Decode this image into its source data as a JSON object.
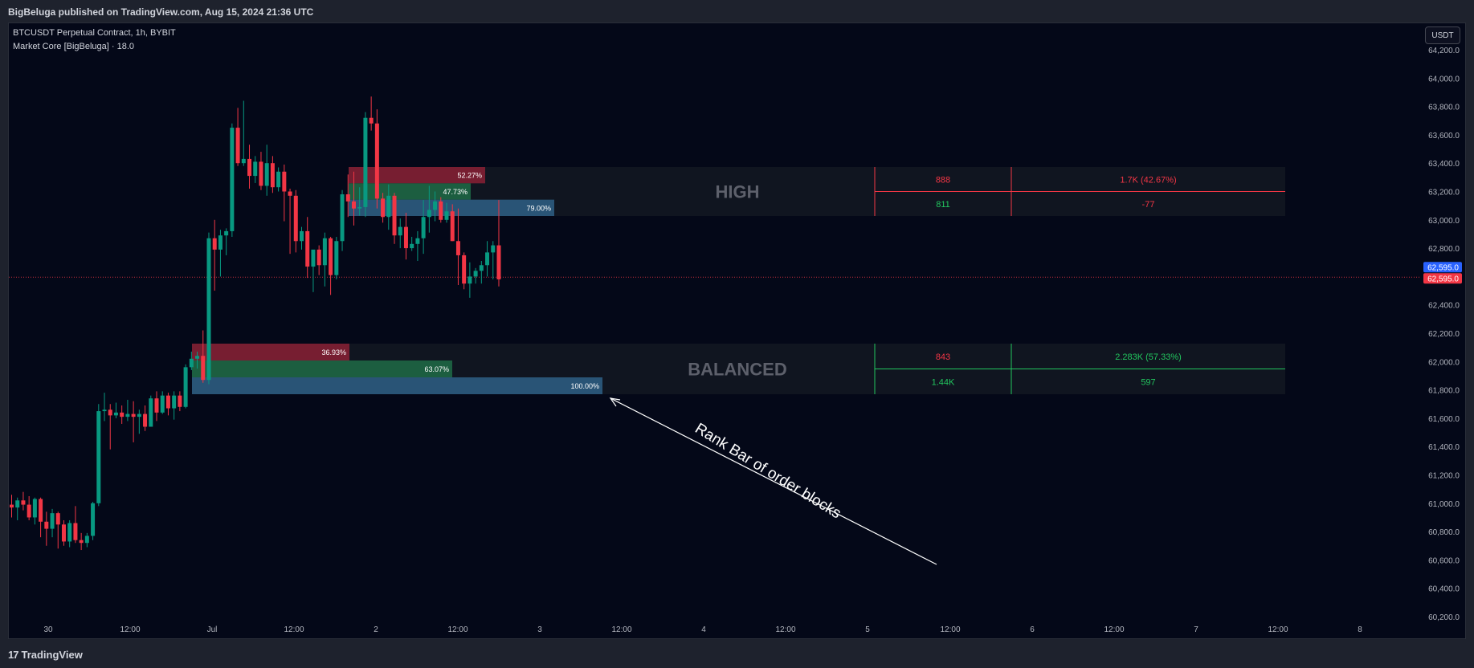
{
  "header": {
    "published": "BigBeluga published on TradingView.com, Aug 15, 2024 21:36 UTC"
  },
  "chart_info": {
    "symbol_line": "BTCUSDT Perpetual Contract, 1h, BYBIT",
    "indicator_line": "Market Core [BigBeluga] · 18.0"
  },
  "currency_button": "USDT",
  "footer": {
    "brand": "TradingView",
    "brand_mark": "17"
  },
  "colors": {
    "up": "#089981",
    "down": "#f23645",
    "background": "#040818",
    "rank_blue": "#2e5f86",
    "rank_green": "#1e6b47",
    "rank_red": "#8a2035"
  },
  "price_axis": {
    "ticks": [
      "64,200.0",
      "64,000.0",
      "63,800.0",
      "63,600.0",
      "63,400.0",
      "63,200.0",
      "63,000.0",
      "62,800.0",
      "62,600.0",
      "62,400.0",
      "62,200.0",
      "62,000.0",
      "61,800.0",
      "61,600.0",
      "61,400.0",
      "61,200.0",
      "61,000.0",
      "60,800.0",
      "60,600.0",
      "60,400.0",
      "60,200.0"
    ],
    "current_price_blue": "62,595.0",
    "current_price_red": "62,595.0"
  },
  "time_axis": {
    "ticks": [
      "30",
      "12:00",
      "Jul",
      "12:00",
      "2",
      "12:00",
      "3",
      "12:00",
      "4",
      "12:00",
      "5",
      "12:00",
      "6",
      "12:00",
      "7",
      "12:00",
      "8"
    ]
  },
  "order_blocks": {
    "high": {
      "label": "HIGH",
      "bars": [
        "52.27%",
        "47.73%",
        "79.00%"
      ],
      "table": {
        "row1_left": "888",
        "row1_right": "1.7K (42.67%)",
        "row2_left": "811",
        "row2_right": "-77"
      }
    },
    "balanced": {
      "label": "BALANCED",
      "bars": [
        "36.93%",
        "63.07%",
        "100.00%"
      ],
      "table": {
        "row1_left": "843",
        "row1_right": "2.283K (57.33%)",
        "row2_left": "1.44K",
        "row2_right": "597"
      }
    }
  },
  "annotation": {
    "text": "Rank Bar of order blocks"
  },
  "chart_data": {
    "type": "candlestick",
    "timeframe": "1h",
    "ylim": [
      60150,
      64250
    ],
    "candles": [
      [
        60990,
        61060,
        60900,
        60970
      ],
      [
        60970,
        61040,
        60880,
        61020
      ],
      [
        61020,
        61080,
        60950,
        60990
      ],
      [
        60990,
        61050,
        60880,
        60900
      ],
      [
        60900,
        61040,
        60850,
        61030
      ],
      [
        61030,
        61040,
        60760,
        60870
      ],
      [
        60870,
        60940,
        60700,
        60820
      ],
      [
        60820,
        60960,
        60760,
        60930
      ],
      [
        60930,
        60940,
        60680,
        60850
      ],
      [
        60850,
        60880,
        60700,
        60730
      ],
      [
        60730,
        60880,
        60690,
        60860
      ],
      [
        60860,
        60980,
        60720,
        60740
      ],
      [
        60740,
        60790,
        60670,
        60720
      ],
      [
        60720,
        60790,
        60690,
        60770
      ],
      [
        60770,
        61010,
        60740,
        61000
      ],
      [
        61000,
        61700,
        60980,
        61650
      ],
      [
        61650,
        61780,
        61580,
        61660
      ],
      [
        61660,
        61700,
        61380,
        61620
      ],
      [
        61620,
        61710,
        61600,
        61640
      ],
      [
        61640,
        61690,
        61560,
        61610
      ],
      [
        61610,
        61730,
        61580,
        61630
      ],
      [
        61630,
        61720,
        61430,
        61610
      ],
      [
        61610,
        61660,
        61490,
        61630
      ],
      [
        61630,
        61690,
        61510,
        61540
      ],
      [
        61540,
        61760,
        61540,
        61740
      ],
      [
        61740,
        61790,
        61580,
        61640
      ],
      [
        61640,
        61790,
        61630,
        61760
      ],
      [
        61760,
        61780,
        61620,
        61670
      ],
      [
        61670,
        61790,
        61590,
        61760
      ],
      [
        61760,
        61790,
        61650,
        61680
      ],
      [
        61680,
        61980,
        61670,
        61960
      ],
      [
        61960,
        62070,
        61940,
        62020
      ],
      [
        62020,
        62070,
        61950,
        62040
      ],
      [
        62040,
        62220,
        61850,
        61870
      ],
      [
        61870,
        62910,
        61840,
        62870
      ],
      [
        62870,
        63000,
        62500,
        62790
      ],
      [
        62790,
        62930,
        62600,
        62890
      ],
      [
        62890,
        62940,
        62750,
        62920
      ],
      [
        62920,
        63680,
        62880,
        63650
      ],
      [
        63650,
        63790,
        63380,
        63400
      ],
      [
        63400,
        63840,
        63380,
        63430
      ],
      [
        63430,
        63530,
        63220,
        63310
      ],
      [
        63310,
        63450,
        63260,
        63410
      ],
      [
        63410,
        63480,
        63210,
        63240
      ],
      [
        63240,
        63530,
        63170,
        63400
      ],
      [
        63400,
        63450,
        63190,
        63230
      ],
      [
        63230,
        63370,
        63200,
        63340
      ],
      [
        63340,
        63390,
        62990,
        63200
      ],
      [
        63200,
        63220,
        62760,
        63170
      ],
      [
        63170,
        63210,
        62770,
        62850
      ],
      [
        62850,
        62950,
        62790,
        62920
      ],
      [
        62920,
        63020,
        62590,
        62670
      ],
      [
        62670,
        62780,
        62490,
        62790
      ],
      [
        62790,
        62820,
        62610,
        62680
      ],
      [
        62680,
        62910,
        62530,
        62870
      ],
      [
        62870,
        62880,
        62470,
        62610
      ],
      [
        62610,
        62880,
        62580,
        62850
      ],
      [
        62850,
        63210,
        62780,
        63180
      ],
      [
        63180,
        63320,
        63020,
        63130
      ],
      [
        63130,
        63340,
        62960,
        63080
      ],
      [
        63080,
        63230,
        63030,
        63090
      ],
      [
        63090,
        63760,
        63020,
        63720
      ],
      [
        63720,
        63870,
        63630,
        63680
      ],
      [
        63680,
        63780,
        63080,
        63150
      ],
      [
        63150,
        63190,
        62980,
        63020
      ],
      [
        63020,
        63250,
        62930,
        63170
      ],
      [
        63170,
        63190,
        62830,
        62890
      ],
      [
        62890,
        63010,
        62800,
        62950
      ],
      [
        62950,
        63050,
        62720,
        62800
      ],
      [
        62800,
        62880,
        62780,
        62830
      ],
      [
        62830,
        62920,
        62710,
        62870
      ],
      [
        62870,
        63140,
        62760,
        63020
      ],
      [
        63020,
        63240,
        62910,
        63070
      ],
      [
        63070,
        63200,
        62990,
        63130
      ],
      [
        63130,
        63160,
        62980,
        63000
      ],
      [
        63000,
        63120,
        62980,
        63060
      ],
      [
        63060,
        63110,
        62850,
        62850
      ],
      [
        62850,
        63080,
        62540,
        62750
      ],
      [
        62750,
        62770,
        62510,
        62550
      ],
      [
        62550,
        62700,
        62450,
        62600
      ],
      [
        62600,
        62660,
        62550,
        62640
      ],
      [
        62640,
        62710,
        62550,
        62680
      ],
      [
        62680,
        62850,
        62600,
        62770
      ],
      [
        62770,
        62850,
        62580,
        62820
      ],
      [
        62820,
        63140,
        62530,
        62580
      ]
    ],
    "order_blocks": [
      {
        "label": "HIGH",
        "top": 63370,
        "bottom": 63030
      },
      {
        "label": "BALANCED",
        "top": 62130,
        "bottom": 61780
      }
    ]
  }
}
